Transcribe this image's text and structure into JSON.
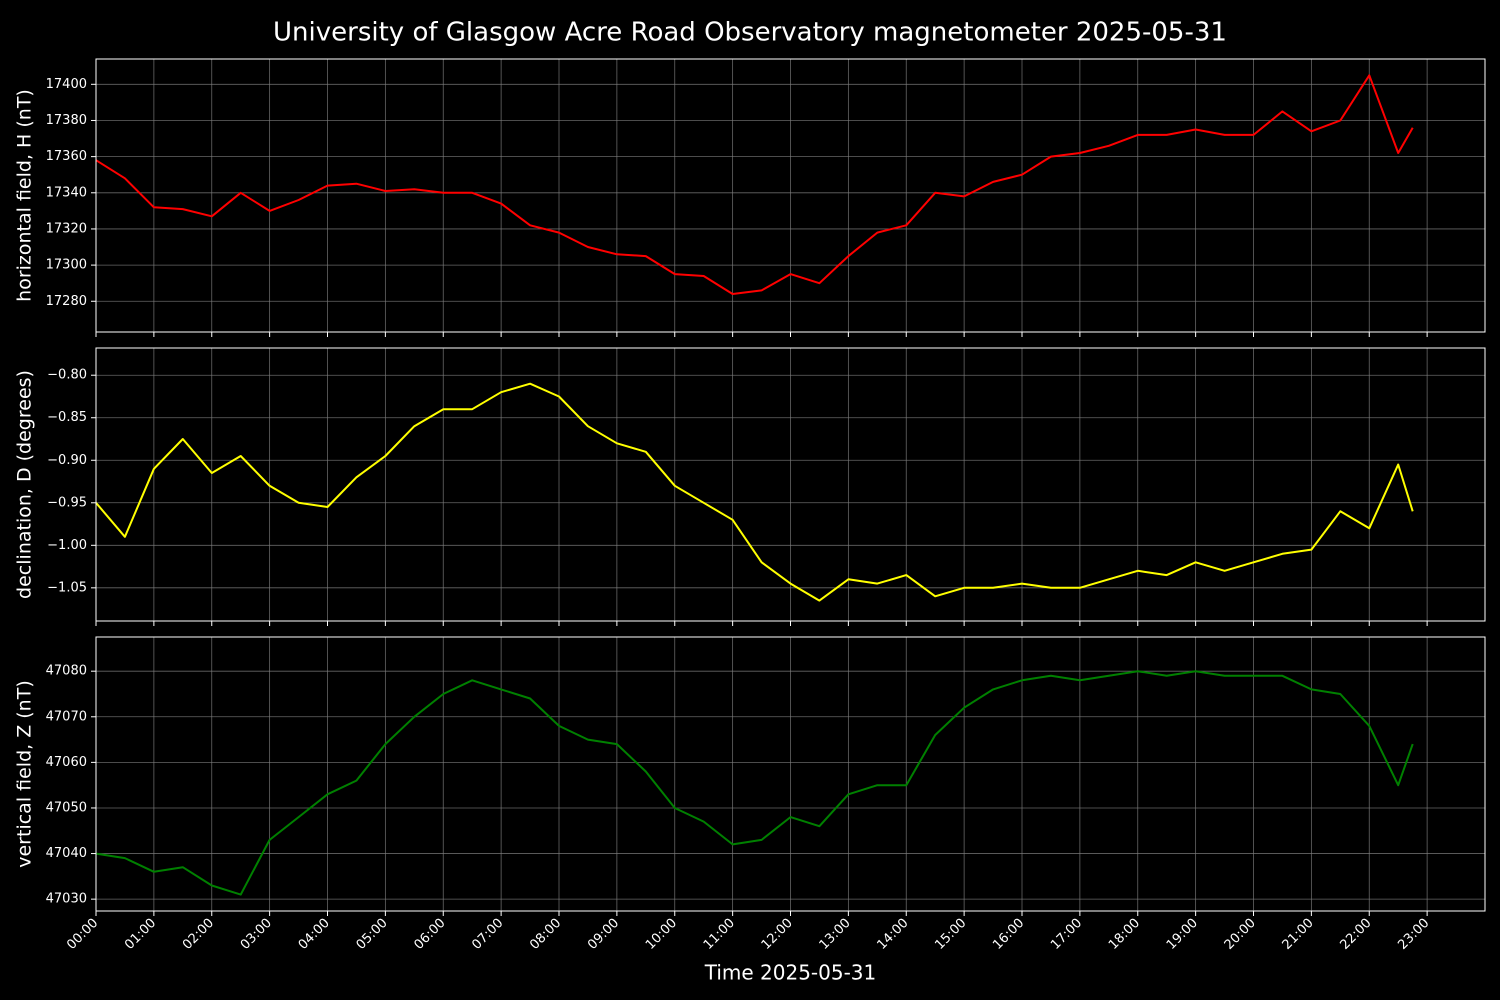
{
  "title": "University of Glasgow Acre Road Observatory magnetometer 2025-05-31",
  "chart_data": [
    {
      "type": "line",
      "ylabel": "horizontal field, H (nT)",
      "grid": true,
      "x": [
        0,
        0.5,
        1,
        1.5,
        2,
        2.5,
        3,
        3.5,
        4,
        4.5,
        5,
        5.5,
        6,
        6.5,
        7,
        7.5,
        8,
        8.5,
        9,
        9.5,
        10,
        10.5,
        11,
        11.5,
        12,
        12.5,
        13,
        13.5,
        14,
        14.5,
        15,
        15.5,
        16,
        16.5,
        17,
        17.5,
        18,
        18.5,
        19,
        19.5,
        20,
        20.5,
        21,
        21.5,
        22,
        22.5,
        22.75
      ],
      "xlim": [
        0,
        24
      ],
      "xticks": [
        0,
        1,
        2,
        3,
        4,
        5,
        6,
        7,
        8,
        9,
        10,
        11,
        12,
        13,
        14,
        15,
        16,
        17,
        18,
        19,
        20,
        21,
        22,
        23
      ],
      "ylim": [
        17263,
        17414
      ],
      "yticks": [
        17280,
        17300,
        17320,
        17340,
        17360,
        17380,
        17400
      ],
      "series": [
        {
          "color": "#ff0000",
          "values": [
            17358,
            17348,
            17332,
            17331,
            17327,
            17340,
            17330,
            17336,
            17344,
            17345,
            17341,
            17342,
            17340,
            17340,
            17334,
            17322,
            17318,
            17310,
            17306,
            17305,
            17295,
            17294,
            17284,
            17286,
            17295,
            17290,
            17305,
            17318,
            17322,
            17340,
            17338,
            17346,
            17350,
            17360,
            17362,
            17366,
            17372,
            17372,
            17375,
            17372,
            17372,
            17385,
            17374,
            17380,
            17405,
            17362,
            17376
          ]
        }
      ]
    },
    {
      "type": "line",
      "ylabel": "declination, D (degrees)",
      "grid": true,
      "x": [
        0,
        0.5,
        1,
        1.5,
        2,
        2.5,
        3,
        3.5,
        4,
        4.5,
        5,
        5.5,
        6,
        6.5,
        7,
        7.5,
        8,
        8.5,
        9,
        9.5,
        10,
        10.5,
        11,
        11.5,
        12,
        12.5,
        13,
        13.5,
        14,
        14.5,
        15,
        15.5,
        16,
        16.5,
        17,
        17.5,
        18,
        18.5,
        19,
        19.5,
        20,
        20.5,
        21,
        21.5,
        22,
        22.5,
        22.75
      ],
      "xlim": [
        0,
        24
      ],
      "xticks": [
        0,
        1,
        2,
        3,
        4,
        5,
        6,
        7,
        8,
        9,
        10,
        11,
        12,
        13,
        14,
        15,
        16,
        17,
        18,
        19,
        20,
        21,
        22,
        23
      ],
      "ylim": [
        -1.089,
        -0.768
      ],
      "yticks": [
        {
          "value": -1.05,
          "label": "−1.05"
        },
        {
          "value": -1.0,
          "label": "−1.00"
        },
        {
          "value": -0.95,
          "label": "−0.95"
        },
        {
          "value": -0.9,
          "label": "−0.90"
        },
        {
          "value": -0.85,
          "label": "−0.85"
        },
        {
          "value": -0.8,
          "label": "−0.80"
        }
      ],
      "series": [
        {
          "color": "#ffff00",
          "values": [
            -0.95,
            -0.99,
            -0.91,
            -0.875,
            -0.915,
            -0.895,
            -0.93,
            -0.95,
            -0.955,
            -0.92,
            -0.895,
            -0.86,
            -0.84,
            -0.84,
            -0.82,
            -0.81,
            -0.825,
            -0.86,
            -0.88,
            -0.89,
            -0.93,
            -0.95,
            -0.97,
            -1.02,
            -1.045,
            -1.065,
            -1.04,
            -1.045,
            -1.035,
            -1.06,
            -1.05,
            -1.05,
            -1.045,
            -1.05,
            -1.05,
            -1.04,
            -1.03,
            -1.035,
            -1.02,
            -1.03,
            -1.02,
            -1.01,
            -1.005,
            -0.96,
            -0.98,
            -0.905,
            -0.96
          ]
        }
      ]
    },
    {
      "type": "line",
      "ylabel": "vertical field, Z (nT)",
      "xlabel": "Time 2025-05-31",
      "grid": true,
      "x": [
        0,
        0.5,
        1,
        1.5,
        2,
        2.5,
        3,
        3.5,
        4,
        4.5,
        5,
        5.5,
        6,
        6.5,
        7,
        7.5,
        8,
        8.5,
        9,
        9.5,
        10,
        10.5,
        11,
        11.5,
        12,
        12.5,
        13,
        13.5,
        14,
        14.5,
        15,
        15.5,
        16,
        16.5,
        17,
        17.5,
        18,
        18.5,
        19,
        19.5,
        20,
        20.5,
        21,
        21.5,
        22,
        22.5,
        22.75
      ],
      "xlim": [
        0,
        24
      ],
      "xticks": [
        {
          "value": 0,
          "label": "00:00"
        },
        {
          "value": 1,
          "label": "01:00"
        },
        {
          "value": 2,
          "label": "02:00"
        },
        {
          "value": 3,
          "label": "03:00"
        },
        {
          "value": 4,
          "label": "04:00"
        },
        {
          "value": 5,
          "label": "05:00"
        },
        {
          "value": 6,
          "label": "06:00"
        },
        {
          "value": 7,
          "label": "07:00"
        },
        {
          "value": 8,
          "label": "08:00"
        },
        {
          "value": 9,
          "label": "09:00"
        },
        {
          "value": 10,
          "label": "10:00"
        },
        {
          "value": 11,
          "label": "11:00"
        },
        {
          "value": 12,
          "label": "12:00"
        },
        {
          "value": 13,
          "label": "13:00"
        },
        {
          "value": 14,
          "label": "14:00"
        },
        {
          "value": 15,
          "label": "15:00"
        },
        {
          "value": 16,
          "label": "16:00"
        },
        {
          "value": 17,
          "label": "17:00"
        },
        {
          "value": 18,
          "label": "18:00"
        },
        {
          "value": 19,
          "label": "19:00"
        },
        {
          "value": 20,
          "label": "20:00"
        },
        {
          "value": 21,
          "label": "21:00"
        },
        {
          "value": 22,
          "label": "22:00"
        },
        {
          "value": 23,
          "label": "23:00"
        }
      ],
      "ylim": [
        47027.4,
        47087.5
      ],
      "yticks": [
        47030,
        47040,
        47050,
        47060,
        47070,
        47080
      ],
      "series": [
        {
          "color": "#008000",
          "values": [
            47040,
            47039,
            47036,
            47037,
            47033,
            47031,
            47043,
            47048,
            47053,
            47056,
            47064,
            47070,
            47075,
            47078,
            47076,
            47074,
            47068,
            47065,
            47064,
            47058,
            47050,
            47047,
            47042,
            47043,
            47048,
            47046,
            47053,
            47055,
            47055,
            47066,
            47072,
            47076,
            47078,
            47079,
            47078,
            47079,
            47080,
            47079,
            47080,
            47079,
            47079,
            47079,
            47076,
            47075,
            47068,
            47055,
            47064
          ]
        }
      ]
    }
  ]
}
